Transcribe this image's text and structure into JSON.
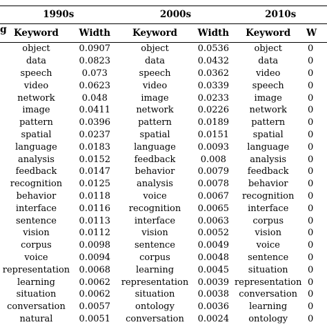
{
  "edge_text": "g",
  "decades": [
    "1990s",
    "2000s",
    "2010s"
  ],
  "column_headers": {
    "keyword": "Keyword",
    "width": "Width",
    "width_partial": "W"
  },
  "rows": [
    {
      "k1": "object",
      "w1": "0.0907",
      "k2": "object",
      "w2": "0.0536",
      "k3": "object",
      "w3": "0"
    },
    {
      "k1": "data",
      "w1": "0.0823",
      "k2": "data",
      "w2": "0.0432",
      "k3": "data",
      "w3": "0"
    },
    {
      "k1": "speech",
      "w1": "0.073",
      "k2": "speech",
      "w2": "0.0362",
      "k3": "video",
      "w3": "0"
    },
    {
      "k1": "video",
      "w1": "0.0623",
      "k2": "video",
      "w2": "0.0339",
      "k3": "speech",
      "w3": "0"
    },
    {
      "k1": "network",
      "w1": "0.048",
      "k2": "image",
      "w2": "0.0233",
      "k3": "image",
      "w3": "0"
    },
    {
      "k1": "image",
      "w1": "0.0411",
      "k2": "network",
      "w2": "0.0226",
      "k3": "network",
      "w3": "0"
    },
    {
      "k1": "pattern",
      "w1": "0.0396",
      "k2": "pattern",
      "w2": "0.0189",
      "k3": "pattern",
      "w3": "0"
    },
    {
      "k1": "spatial",
      "w1": "0.0237",
      "k2": "spatial",
      "w2": "0.0151",
      "k3": "spatial",
      "w3": "0"
    },
    {
      "k1": "language",
      "w1": "0.0183",
      "k2": "language",
      "w2": "0.0093",
      "k3": "language",
      "w3": "0"
    },
    {
      "k1": "analysis",
      "w1": "0.0152",
      "k2": "feedback",
      "w2": "0.008",
      "k3": "analysis",
      "w3": "0"
    },
    {
      "k1": "feedback",
      "w1": "0.0147",
      "k2": "behavior",
      "w2": "0.0079",
      "k3": "feedback",
      "w3": "0"
    },
    {
      "k1": "recognition",
      "w1": "0.0125",
      "k2": "analysis",
      "w2": "0.0078",
      "k3": "behavior",
      "w3": "0"
    },
    {
      "k1": "behavior",
      "w1": "0.0118",
      "k2": "voice",
      "w2": "0.0067",
      "k3": "recognition",
      "w3": "0"
    },
    {
      "k1": "interface",
      "w1": "0.0116",
      "k2": "recognition",
      "w2": "0.0065",
      "k3": "interface",
      "w3": "0"
    },
    {
      "k1": "sentence",
      "w1": "0.0113",
      "k2": "interface",
      "w2": "0.0063",
      "k3": "corpus",
      "w3": "0"
    },
    {
      "k1": "vision",
      "w1": "0.0112",
      "k2": "vision",
      "w2": "0.0052",
      "k3": "vision",
      "w3": "0"
    },
    {
      "k1": "corpus",
      "w1": "0.0098",
      "k2": "sentence",
      "w2": "0.0049",
      "k3": "voice",
      "w3": "0"
    },
    {
      "k1": "voice",
      "w1": "0.0094",
      "k2": "corpus",
      "w2": "0.0048",
      "k3": "sentence",
      "w3": "0"
    },
    {
      "k1": "representation",
      "w1": "0.0068",
      "k2": "learning",
      "w2": "0.0045",
      "k3": "situation",
      "w3": "0"
    },
    {
      "k1": "learning",
      "w1": "0.0062",
      "k2": "representation",
      "w2": "0.0039",
      "k3": "representation",
      "w3": "0"
    },
    {
      "k1": "situation",
      "w1": "0.0062",
      "k2": "situation",
      "w2": "0.0038",
      "k3": "conversation",
      "w3": "0"
    },
    {
      "k1": "conversation",
      "w1": "0.0057",
      "k2": "ontology",
      "w2": "0.0036",
      "k3": "learning",
      "w3": "0"
    },
    {
      "k1": "natural",
      "w1": "0.0051",
      "k2": "conversation",
      "w2": "0.0024",
      "k3": "ontology",
      "w3": "0"
    }
  ]
}
